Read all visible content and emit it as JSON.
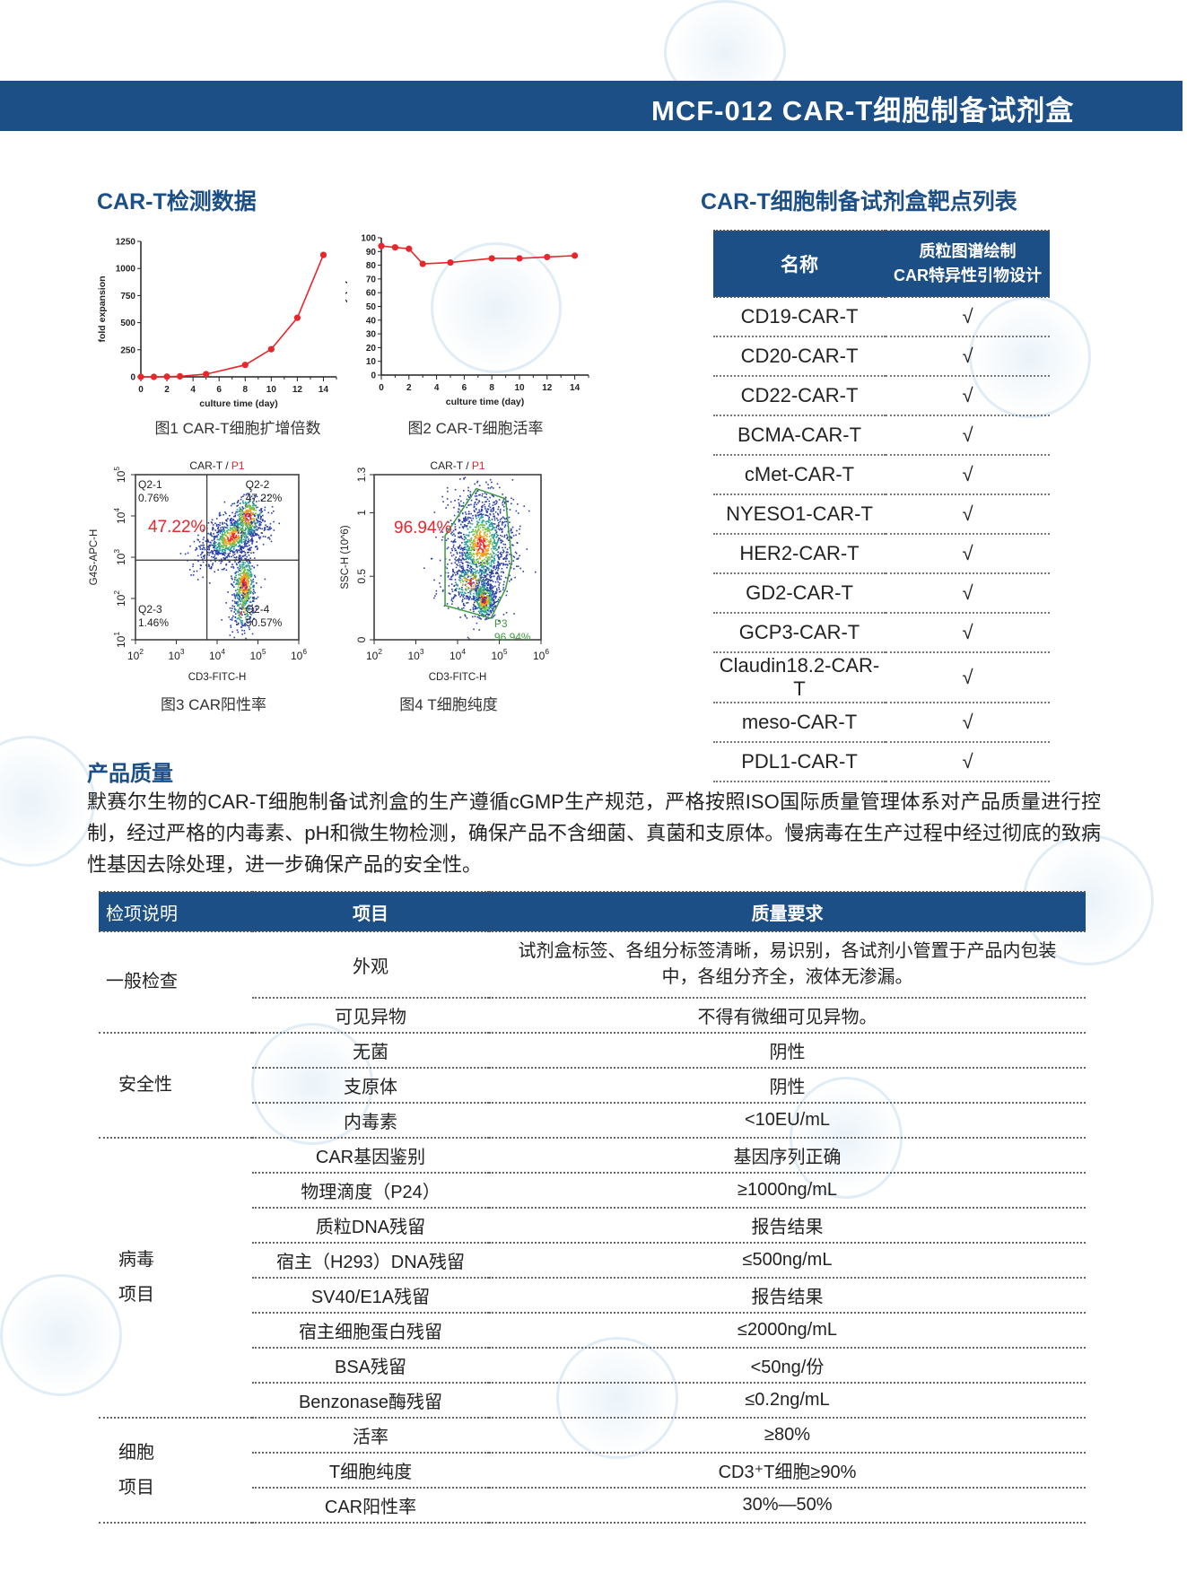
{
  "header": {
    "title": "MCF-012  CAR-T细胞制备试剂盒"
  },
  "detection": {
    "title": "CAR-T检测数据",
    "captions": [
      "图1 CAR-T细胞扩增倍数",
      "图2 CAR-T细胞活率",
      "图3 CAR阳性率",
      "图4 T细胞纯度"
    ]
  },
  "chart_data": [
    {
      "type": "line",
      "x": [
        0,
        1,
        2,
        3,
        5,
        8,
        10,
        12,
        14
      ],
      "y": [
        0,
        0,
        2,
        5,
        25,
        110,
        255,
        545,
        1125
      ],
      "xlabel": "culture time (day)",
      "ylabel": "fold expansion",
      "xlim": [
        0,
        15
      ],
      "ylim": [
        0,
        1250
      ],
      "xticks": [
        0,
        2,
        4,
        6,
        8,
        10,
        12,
        14
      ],
      "yticks": [
        0,
        250,
        500,
        750,
        1000,
        1250
      ],
      "color": "#e8262b",
      "grid": false
    },
    {
      "type": "line",
      "x": [
        0,
        1,
        2,
        3,
        5,
        8,
        10,
        12,
        14
      ],
      "y": [
        94,
        93,
        92,
        81,
        82,
        85,
        85,
        86,
        87
      ],
      "xlabel": "culture time (day)",
      "ylabel": "viability (%)",
      "xlim": [
        0,
        15
      ],
      "ylim": [
        0,
        100
      ],
      "xticks": [
        0,
        2,
        4,
        6,
        8,
        10,
        12,
        14
      ],
      "yticks": [
        0,
        10,
        20,
        30,
        40,
        50,
        60,
        70,
        80,
        90,
        100
      ],
      "color": "#e8262b",
      "grid": false
    },
    {
      "type": "scatter",
      "title_prefix": "CAR-T / ",
      "title_gate": "P1",
      "xlabel": "CD3-FITC-H",
      "ylabel": "G4S-APC-H",
      "x_scale": "log",
      "y_scale": "log",
      "xticks": [
        "10^2",
        "10^3",
        "10^4",
        "10^5",
        "10^6"
      ],
      "yticks": [
        "10^1",
        "10^2",
        "10^3",
        "10^4",
        "10^5"
      ],
      "quadrants": [
        {
          "name": "Q2-1",
          "value": "0.76%"
        },
        {
          "name": "Q2-2",
          "value": "47.22%"
        },
        {
          "name": "Q2-3",
          "value": "1.46%"
        },
        {
          "name": "Q2-4",
          "value": "50.57%"
        }
      ],
      "highlight": "47.22%"
    },
    {
      "type": "scatter",
      "title_prefix": "CAR-T / ",
      "title_gate": "P1",
      "xlabel": "CD3-FITC-H",
      "ylabel": "SSC-H (10^6)",
      "x_scale": "log",
      "xticks": [
        "10^2",
        "10^3",
        "10^4",
        "10^5",
        "10^6"
      ],
      "yticks": [
        "0",
        "0.5",
        "1",
        "1.3"
      ],
      "gate": {
        "name": "P3",
        "value": "96.94%",
        "color": "#3f9a3f"
      },
      "highlight": "96.94%"
    }
  ],
  "targets": {
    "title": "CAR-T细胞制备试剂盒靶点列表",
    "col_name": "名称",
    "col_design_1": "质粒图谱绘制",
    "col_design_2": "CAR特异性引物设计",
    "rows": [
      {
        "name": "CD19-CAR-T",
        "mark": "√"
      },
      {
        "name": "CD20-CAR-T",
        "mark": "√"
      },
      {
        "name": "CD22-CAR-T",
        "mark": "√"
      },
      {
        "name": "BCMA-CAR-T",
        "mark": "√"
      },
      {
        "name": "cMet-CAR-T",
        "mark": "√"
      },
      {
        "name": "NYESO1-CAR-T",
        "mark": "√"
      },
      {
        "name": "HER2-CAR-T",
        "mark": "√"
      },
      {
        "name": "GD2-CAR-T",
        "mark": "√"
      },
      {
        "name": "GCP3-CAR-T",
        "mark": "√"
      },
      {
        "name": "Claudin18.2-CAR-T",
        "mark": "√"
      },
      {
        "name": "meso-CAR-T",
        "mark": "√"
      },
      {
        "name": "PDL1-CAR-T",
        "mark": "√"
      }
    ]
  },
  "quality": {
    "title": "产品质量",
    "paragraph": "默赛尔生物的CAR-T细胞制备试剂盒的生产遵循cGMP生产规范，严格按照ISO国际质量管理体系对产品质量进行控制，经过严格的内毒素、pH和微生物检测，确保产品不含细菌、真菌和支原体。慢病毒在生产过程中经过彻底的致病性基因去除处理，进一步确保产品的安全性。",
    "headers": [
      "检项说明",
      "项目",
      "质量要求"
    ],
    "groups": [
      {
        "label": "一般检查",
        "rows": [
          {
            "item": "外观",
            "req": "试剂盒标签、各组分标签清晰，易识别，各试剂小管置于产品内包装中，各组分齐全，液体无渗漏。"
          },
          {
            "item": "可见异物",
            "req": "不得有微细可见异物。"
          }
        ]
      },
      {
        "label": "安全性",
        "rows": [
          {
            "item": "无菌",
            "req": "阴性"
          },
          {
            "item": "支原体",
            "req": "阴性"
          },
          {
            "item": "内毒素",
            "req": "<10EU/mL"
          }
        ]
      },
      {
        "label": "病毒\n项目",
        "rows": [
          {
            "item": "CAR基因鉴别",
            "req": "基因序列正确"
          },
          {
            "item": "物理滴度（P24）",
            "req": "≥1000ng/mL"
          },
          {
            "item": "质粒DNA残留",
            "req": "报告结果"
          },
          {
            "item": "宿主（H293）DNA残留",
            "req": "≤500ng/mL"
          },
          {
            "item": "SV40/E1A残留",
            "req": "报告结果"
          },
          {
            "item": "宿主细胞蛋白残留",
            "req": "≤2000ng/mL"
          },
          {
            "item": "BSA残留",
            "req": "<50ng/份"
          },
          {
            "item": "Benzonase酶残留",
            "req": "≤0.2ng/mL"
          }
        ]
      },
      {
        "label": "细胞\n项目",
        "rows": [
          {
            "item": "活率",
            "req": "≥80%"
          },
          {
            "item": "T细胞纯度",
            "req": "CD3⁺T细胞≥90%"
          },
          {
            "item": "CAR阳性率",
            "req": "30%—50%"
          }
        ]
      }
    ]
  },
  "colors": {
    "brand": "#1d4f87",
    "series": "#e8262b",
    "gate": "#3f9a3f"
  }
}
